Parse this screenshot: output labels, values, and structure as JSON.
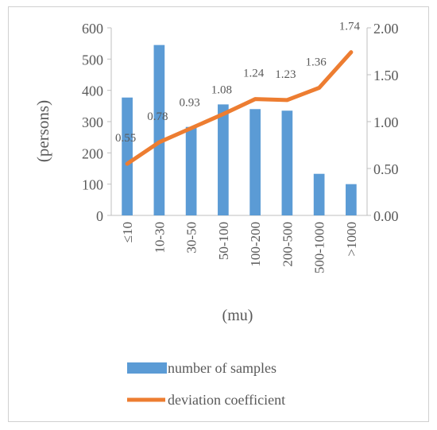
{
  "chart_data": {
    "type": "bar",
    "categories": [
      "≤10",
      "10-30",
      "30-50",
      "50-100",
      "100-200",
      "200-500",
      "500-1000",
      ">1000"
    ],
    "series": [
      {
        "name": "number of samples",
        "type": "bar",
        "axis": "left",
        "color": "#5b9bd5",
        "values": [
          377,
          545,
          283,
          355,
          340,
          335,
          133,
          100
        ]
      },
      {
        "name": "deviation coefficient",
        "type": "line",
        "axis": "right",
        "color": "#ed7d31",
        "values": [
          0.55,
          0.78,
          0.93,
          1.08,
          1.24,
          1.23,
          1.36,
          1.74
        ],
        "data_labels": [
          "0.55",
          "0.78",
          "0.93",
          "1.08",
          "1.24",
          "1.23",
          "1.36",
          "1.74"
        ]
      }
    ],
    "ylabel": "(persons)",
    "xlabel": "(mu)",
    "ylim": [
      0,
      600
    ],
    "y_ticks": [
      "0",
      "100",
      "200",
      "300",
      "400",
      "500",
      "600"
    ],
    "y2lim": [
      0,
      2.0
    ],
    "y2_ticks": [
      "0.00",
      "0.50",
      "1.00",
      "1.50",
      "2.00"
    ],
    "grid": false,
    "legend_position": "bottom"
  }
}
